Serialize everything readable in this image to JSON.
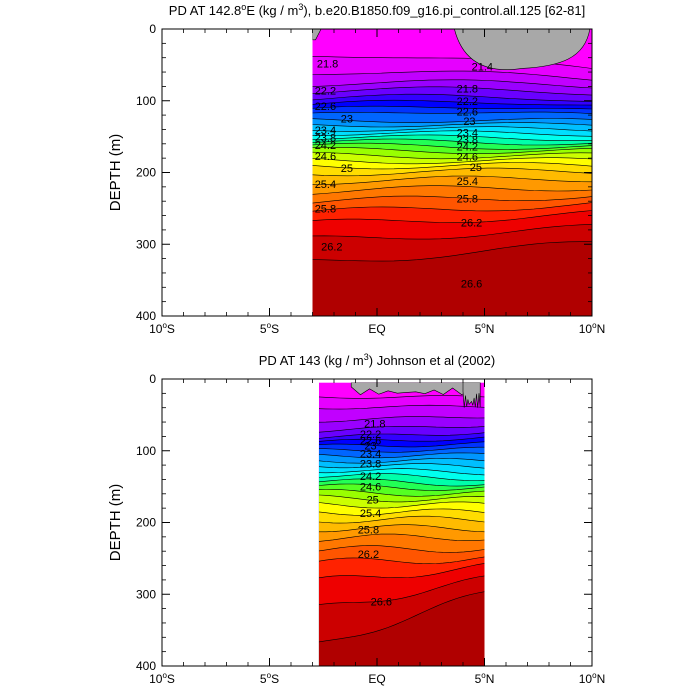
{
  "figure": {
    "panels_count": 2
  },
  "chart_data": [
    {
      "type": "heatmap",
      "title_prefix": "PD AT 142.8",
      "title_degree_suffix": "E (kg / m",
      "title_suffix": "), b.e20.B1850.f09_g16.pi_control.all.125 [62-81]",
      "title_superscript_1": "o",
      "title_superscript_2": "3",
      "ylabel": "DEPTH (m)",
      "xlim": [
        -10,
        10
      ],
      "ylim": [
        400,
        0
      ],
      "data_xlim": [
        -3.0,
        10.0
      ],
      "data_ylim": [
        0,
        400
      ],
      "x_ticks": [
        {
          "value": -10,
          "label": "10",
          "sup": "o",
          "hemi": "S"
        },
        {
          "value": -5,
          "label": "5",
          "sup": "o",
          "hemi": "S"
        },
        {
          "value": 0,
          "label": "EQ",
          "sup": "",
          "hemi": ""
        },
        {
          "value": 5,
          "label": "5",
          "sup": "o",
          "hemi": "N"
        },
        {
          "value": 10,
          "label": "10",
          "sup": "o",
          "hemi": "N"
        }
      ],
      "y_ticks": [
        {
          "value": 0,
          "label": "0"
        },
        {
          "value": 100,
          "label": "100"
        },
        {
          "value": 200,
          "label": "200"
        },
        {
          "value": 300,
          "label": "300"
        },
        {
          "value": 400,
          "label": "400"
        }
      ],
      "contour_levels": [
        21.4,
        21.6,
        21.8,
        22.0,
        22.2,
        22.4,
        22.6,
        22.8,
        23.0,
        23.2,
        23.4,
        23.6,
        23.8,
        24.0,
        24.2,
        24.4,
        24.6,
        24.8,
        25.0,
        25.2,
        25.4,
        25.6,
        25.8,
        26.0,
        26.2,
        26.4,
        26.6
      ],
      "level_depth_west": [
        38,
        62,
        78,
        88,
        98,
        106,
        113,
        120,
        127,
        133,
        139,
        145,
        151,
        157,
        163,
        169,
        176,
        183,
        190,
        200,
        212,
        226,
        241,
        256,
        272,
        294,
        325
      ],
      "level_depth_east": [
        55,
        70,
        80,
        90,
        100,
        107,
        114,
        121,
        128,
        134,
        140,
        146,
        152,
        158,
        164,
        170,
        177,
        184,
        191,
        198,
        208,
        220,
        232,
        244,
        258,
        278,
        300
      ],
      "contour_labels": [
        {
          "text": "21.8",
          "x": -2.3,
          "y": 48
        },
        {
          "text": "21.4",
          "x": 4.9,
          "y": 52
        },
        {
          "text": "21.8",
          "x": 4.2,
          "y": 83
        },
        {
          "text": "22.2",
          "x": -2.4,
          "y": 86
        },
        {
          "text": "22.2",
          "x": 4.2,
          "y": 100
        },
        {
          "text": "22.6",
          "x": -2.4,
          "y": 107
        },
        {
          "text": "22.6",
          "x": 4.2,
          "y": 115
        },
        {
          "text": "23",
          "x": -1.4,
          "y": 125
        },
        {
          "text": "23",
          "x": 4.3,
          "y": 128
        },
        {
          "text": "23.4",
          "x": -2.4,
          "y": 141
        },
        {
          "text": "23.4",
          "x": 4.2,
          "y": 144
        },
        {
          "text": "23.8",
          "x": -2.4,
          "y": 151
        },
        {
          "text": "23.8",
          "x": 4.2,
          "y": 154
        },
        {
          "text": "24.2",
          "x": -2.4,
          "y": 162
        },
        {
          "text": "24.2",
          "x": 4.2,
          "y": 164
        },
        {
          "text": "24.6",
          "x": -2.4,
          "y": 177
        },
        {
          "text": "24.6",
          "x": 4.2,
          "y": 178
        },
        {
          "text": "25",
          "x": -1.4,
          "y": 194
        },
        {
          "text": "25",
          "x": 4.6,
          "y": 192
        },
        {
          "text": "25.4",
          "x": -2.4,
          "y": 216
        },
        {
          "text": "25.4",
          "x": 4.2,
          "y": 212
        },
        {
          "text": "25.8",
          "x": -2.4,
          "y": 250
        },
        {
          "text": "25.8",
          "x": 4.2,
          "y": 236
        },
        {
          "text": "26.2",
          "x": -2.1,
          "y": 303
        },
        {
          "text": "26.2",
          "x": 4.4,
          "y": 270
        },
        {
          "text": "26.6",
          "x": 4.4,
          "y": 355
        }
      ],
      "missing_regions": [
        {
          "x_start": 3.6,
          "x_end": 9.9,
          "shape": "surface-bowl",
          "max_depth": 55
        },
        {
          "x_start": -3.0,
          "x_end": -2.6,
          "shape": "corner",
          "max_depth": 15
        }
      ]
    },
    {
      "type": "heatmap",
      "title_prefix": "PD AT 143 (kg / m",
      "title_superscript_2": "3",
      "title_suffix": ") Johnson et al (2002)",
      "ylabel": "DEPTH (m)",
      "xlim": [
        -10,
        10
      ],
      "ylim": [
        400,
        0
      ],
      "data_xlim": [
        -2.7,
        5.0
      ],
      "data_ylim": [
        5,
        400
      ],
      "x_ticks": [
        {
          "value": -10,
          "label": "10",
          "sup": "o",
          "hemi": "S"
        },
        {
          "value": -5,
          "label": "5",
          "sup": "o",
          "hemi": "S"
        },
        {
          "value": 0,
          "label": "EQ",
          "sup": "",
          "hemi": ""
        },
        {
          "value": 5,
          "label": "5",
          "sup": "o",
          "hemi": "N"
        },
        {
          "value": 10,
          "label": "10",
          "sup": "o",
          "hemi": "N"
        }
      ],
      "y_ticks": [
        {
          "value": 0,
          "label": "0"
        },
        {
          "value": 100,
          "label": "100"
        },
        {
          "value": 200,
          "label": "200"
        },
        {
          "value": 300,
          "label": "300"
        },
        {
          "value": 400,
          "label": "400"
        }
      ],
      "contour_levels": [
        21.4,
        21.6,
        21.8,
        22.0,
        22.2,
        22.4,
        22.6,
        22.8,
        23.0,
        23.2,
        23.4,
        23.6,
        23.8,
        24.0,
        24.2,
        24.4,
        24.6,
        24.8,
        25.0,
        25.2,
        25.4,
        25.6,
        25.8,
        26.0,
        26.2,
        26.4,
        26.6
      ],
      "level_depth_west": [
        25,
        40,
        58,
        72,
        82,
        88,
        94,
        100,
        107,
        114,
        120,
        127,
        134,
        142,
        150,
        158,
        166,
        175,
        185,
        196,
        208,
        222,
        238,
        256,
        282,
        320,
        370
      ],
      "level_depth_east": [
        25,
        38,
        52,
        64,
        74,
        82,
        90,
        98,
        106,
        114,
        122,
        130,
        138,
        146,
        152,
        160,
        168,
        176,
        186,
        196,
        208,
        220,
        236,
        250,
        262,
        280,
        300
      ],
      "contour_labels": [
        {
          "text": "21.8",
          "x": -0.1,
          "y": 62
        },
        {
          "text": "22.2",
          "x": -0.3,
          "y": 77
        },
        {
          "text": "22.6",
          "x": -0.3,
          "y": 86
        },
        {
          "text": "23",
          "x": -0.3,
          "y": 93
        },
        {
          "text": "23.4",
          "x": -0.3,
          "y": 104
        },
        {
          "text": "23.8",
          "x": -0.3,
          "y": 118
        },
        {
          "text": "24.2",
          "x": -0.3,
          "y": 135
        },
        {
          "text": "24.6",
          "x": -0.3,
          "y": 150
        },
        {
          "text": "25",
          "x": -0.2,
          "y": 168
        },
        {
          "text": "25.4",
          "x": -0.3,
          "y": 187
        },
        {
          "text": "25.8",
          "x": -0.4,
          "y": 210
        },
        {
          "text": "26.2",
          "x": -0.4,
          "y": 244
        },
        {
          "text": "26.6",
          "x": 0.2,
          "y": 310
        }
      ],
      "missing_regions": [
        {
          "x_start": -1.2,
          "x_end": 4.8,
          "shape": "surface-ragged",
          "max_depth": 22
        },
        {
          "x_start": 4.0,
          "x_end": 4.8,
          "shape": "surface-ragged",
          "max_depth": 40
        }
      ]
    }
  ]
}
